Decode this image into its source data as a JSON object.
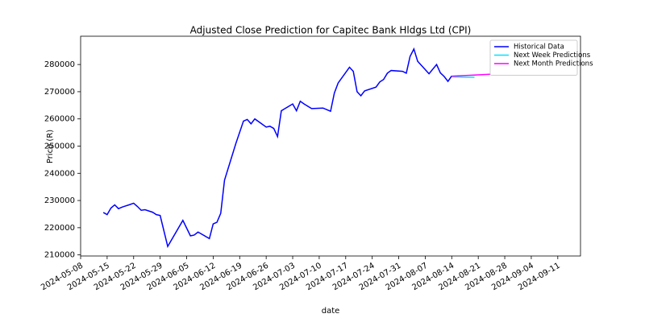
{
  "chart_data": {
    "type": "line",
    "title": "Adjusted Close Prediction for Capitec Bank Hldgs Ltd (CPI)",
    "x_label": "date",
    "y_label": "Price (R)",
    "xlim": [
      "2024-05-08",
      "2024-09-17"
    ],
    "xticks": [
      "2024-05-08",
      "2024-05-15",
      "2024-05-22",
      "2024-05-29",
      "2024-06-05",
      "2024-06-12",
      "2024-06-19",
      "2024-06-26",
      "2024-07-03",
      "2024-07-10",
      "2024-07-17",
      "2024-07-24",
      "2024-07-31",
      "2024-08-07",
      "2024-08-14",
      "2024-08-21",
      "2024-08-28",
      "2024-09-04",
      "2024-09-11"
    ],
    "ylim": [
      209600,
      290400
    ],
    "yticks": [
      210000,
      220000,
      230000,
      240000,
      250000,
      260000,
      270000,
      280000
    ],
    "grid": false,
    "legend": "upper right",
    "series": [
      {
        "name": "Historical Data",
        "color": "#0000ff",
        "x": [
          "2024-05-14",
          "2024-05-15",
          "2024-05-16",
          "2024-05-17",
          "2024-05-18",
          "2024-05-19",
          "2024-05-21",
          "2024-05-22",
          "2024-05-23",
          "2024-05-24",
          "2024-05-25",
          "2024-05-27",
          "2024-05-28",
          "2024-05-29",
          "2024-05-31",
          "2024-06-04",
          "2024-06-06",
          "2024-06-07",
          "2024-06-08",
          "2024-06-11",
          "2024-06-12",
          "2024-06-13",
          "2024-06-14",
          "2024-06-15",
          "2024-06-18",
          "2024-06-20",
          "2024-06-21",
          "2024-06-22",
          "2024-06-23",
          "2024-06-26",
          "2024-06-27",
          "2024-06-28",
          "2024-06-29",
          "2024-06-30",
          "2024-07-03",
          "2024-07-04",
          "2024-07-05",
          "2024-07-06",
          "2024-07-08",
          "2024-07-11",
          "2024-07-13",
          "2024-07-14",
          "2024-07-15",
          "2024-07-18",
          "2024-07-19",
          "2024-07-20",
          "2024-07-21",
          "2024-07-22",
          "2024-07-25",
          "2024-07-26",
          "2024-07-27",
          "2024-07-28",
          "2024-07-29",
          "2024-08-01",
          "2024-08-02",
          "2024-08-03",
          "2024-08-04",
          "2024-08-05",
          "2024-08-08",
          "2024-08-10",
          "2024-08-11",
          "2024-08-12",
          "2024-08-13",
          "2024-08-14"
        ],
        "values": [
          225600,
          224800,
          227200,
          228400,
          227000,
          227600,
          228500,
          229000,
          227800,
          226400,
          226600,
          225700,
          224800,
          224500,
          213100,
          222700,
          217000,
          217300,
          218400,
          216000,
          221400,
          222000,
          225300,
          237500,
          251000,
          259200,
          259800,
          258200,
          260000,
          257000,
          257300,
          256500,
          253500,
          263000,
          265500,
          263000,
          266500,
          265500,
          263800,
          264000,
          262800,
          269500,
          273200,
          279000,
          277500,
          270000,
          268500,
          270300,
          271700,
          273600,
          274500,
          276800,
          277800,
          277500,
          276800,
          283000,
          285700,
          281200,
          276600,
          280000,
          276900,
          275600,
          273800,
          275800
        ]
      },
      {
        "name": "Next Week Predictions",
        "color": "#00e5ff",
        "x": [
          "2024-08-14",
          "2024-08-15",
          "2024-08-16",
          "2024-08-17",
          "2024-08-18",
          "2024-08-19",
          "2024-08-20"
        ],
        "values": [
          275500,
          275400,
          275400,
          275350,
          275300,
          275300,
          275300
        ]
      },
      {
        "name": "Next Month Predictions",
        "color": "#ff00ff",
        "x": [
          "2024-08-14",
          "2024-08-21",
          "2024-08-28",
          "2024-09-04",
          "2024-09-11"
        ],
        "values": [
          275700,
          276200,
          276700,
          277100,
          277600
        ]
      }
    ]
  }
}
